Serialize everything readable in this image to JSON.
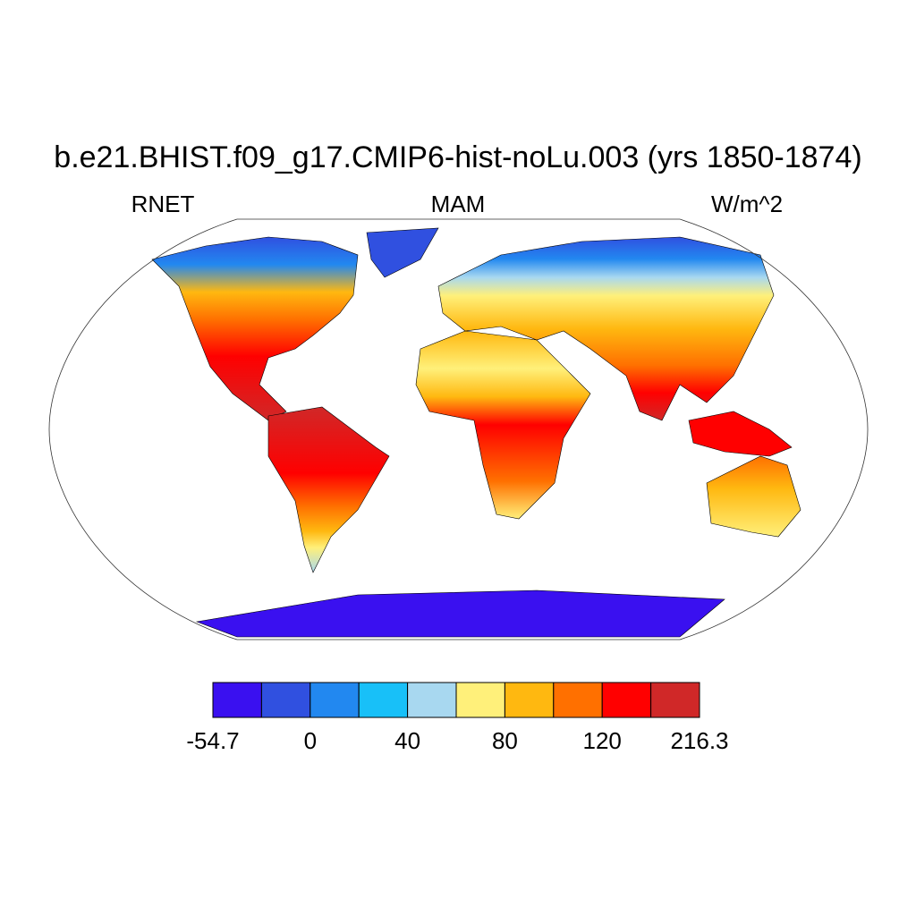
{
  "title": "b.e21.BHIST.f09_g17.CMIP6-hist-noLu.003 (yrs 1850-1874)",
  "left_label": "RNET",
  "center_label": "MAM",
  "right_label": "W/m^2",
  "colorbar": {
    "colors": [
      "#3a10f0",
      "#3050e0",
      "#2288f0",
      "#18c0f8",
      "#a8d8f0",
      "#fff07a",
      "#ffb810",
      "#ff7000",
      "#ff0000",
      "#d02828"
    ],
    "ticks": [
      -54.7,
      0,
      40,
      80,
      120,
      216.3
    ]
  }
}
